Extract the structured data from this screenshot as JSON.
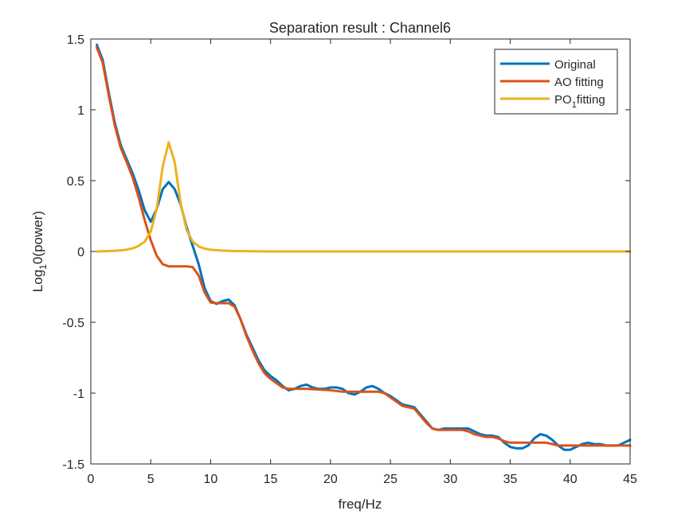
{
  "chart_data": {
    "type": "line",
    "title": "Separation result : Channel6",
    "xlabel": "freq/Hz",
    "ylabel": {
      "prefix": "Log",
      "subscript": "1",
      "suffix": "0(power)"
    },
    "xlim": [
      0,
      45
    ],
    "ylim": [
      -1.5,
      1.5
    ],
    "xticks": [
      0,
      5,
      10,
      15,
      20,
      25,
      30,
      35,
      40,
      45
    ],
    "xtick_labels": [
      "0",
      "5",
      "10",
      "15",
      "20",
      "25",
      "30",
      "35",
      "40",
      "45"
    ],
    "yticks": [
      -1.5,
      -1,
      -0.5,
      0,
      0.5,
      1,
      1.5
    ],
    "ytick_labels": [
      "-1.5",
      "-1",
      "-0.5",
      "0",
      "0.5",
      "1",
      "1.5"
    ],
    "grid": false,
    "legend_position": "top-right",
    "series": [
      {
        "name": "Original",
        "legend_label": {
          "prefix": "Original",
          "subscript": "",
          "suffix": ""
        },
        "color": "#0072BD",
        "points": [
          [
            0.5,
            1.46
          ],
          [
            1.0,
            1.35
          ],
          [
            1.5,
            1.12
          ],
          [
            2.0,
            0.91
          ],
          [
            2.5,
            0.75
          ],
          [
            3.0,
            0.65
          ],
          [
            3.5,
            0.55
          ],
          [
            4.0,
            0.43
          ],
          [
            4.5,
            0.29
          ],
          [
            5.0,
            0.21
          ],
          [
            5.5,
            0.3
          ],
          [
            6.0,
            0.44
          ],
          [
            6.5,
            0.49
          ],
          [
            7.0,
            0.44
          ],
          [
            7.5,
            0.33
          ],
          [
            8.0,
            0.17
          ],
          [
            8.5,
            0.04
          ],
          [
            9.0,
            -0.09
          ],
          [
            9.5,
            -0.26
          ],
          [
            10.0,
            -0.35
          ],
          [
            10.5,
            -0.37
          ],
          [
            11.0,
            -0.35
          ],
          [
            11.5,
            -0.34
          ],
          [
            12.0,
            -0.38
          ],
          [
            12.5,
            -0.48
          ],
          [
            13.0,
            -0.59
          ],
          [
            13.5,
            -0.68
          ],
          [
            14.0,
            -0.77
          ],
          [
            14.5,
            -0.84
          ],
          [
            15.0,
            -0.88
          ],
          [
            15.5,
            -0.91
          ],
          [
            16.0,
            -0.95
          ],
          [
            16.5,
            -0.98
          ],
          [
            17.0,
            -0.97
          ],
          [
            17.5,
            -0.95
          ],
          [
            18.0,
            -0.94
          ],
          [
            18.5,
            -0.96
          ],
          [
            19.0,
            -0.97
          ],
          [
            19.5,
            -0.97
          ],
          [
            20.0,
            -0.96
          ],
          [
            20.5,
            -0.96
          ],
          [
            21.0,
            -0.97
          ],
          [
            21.5,
            -1.0
          ],
          [
            22.0,
            -1.01
          ],
          [
            22.5,
            -0.99
          ],
          [
            23.0,
            -0.96
          ],
          [
            23.5,
            -0.95
          ],
          [
            24.0,
            -0.97
          ],
          [
            24.5,
            -1.0
          ],
          [
            25.0,
            -1.02
          ],
          [
            25.5,
            -1.05
          ],
          [
            26.0,
            -1.08
          ],
          [
            26.5,
            -1.09
          ],
          [
            27.0,
            -1.1
          ],
          [
            27.5,
            -1.15
          ],
          [
            28.0,
            -1.2
          ],
          [
            28.5,
            -1.25
          ],
          [
            29.0,
            -1.26
          ],
          [
            29.5,
            -1.25
          ],
          [
            30.0,
            -1.25
          ],
          [
            30.5,
            -1.25
          ],
          [
            31.0,
            -1.25
          ],
          [
            31.5,
            -1.25
          ],
          [
            32.0,
            -1.27
          ],
          [
            32.5,
            -1.29
          ],
          [
            33.0,
            -1.3
          ],
          [
            33.5,
            -1.3
          ],
          [
            34.0,
            -1.31
          ],
          [
            34.5,
            -1.35
          ],
          [
            35.0,
            -1.38
          ],
          [
            35.5,
            -1.39
          ],
          [
            36.0,
            -1.39
          ],
          [
            36.5,
            -1.37
          ],
          [
            37.0,
            -1.32
          ],
          [
            37.5,
            -1.29
          ],
          [
            38.0,
            -1.3
          ],
          [
            38.5,
            -1.33
          ],
          [
            39.0,
            -1.37
          ],
          [
            39.5,
            -1.4
          ],
          [
            40.0,
            -1.4
          ],
          [
            40.5,
            -1.38
          ],
          [
            41.0,
            -1.36
          ],
          [
            41.5,
            -1.35
          ],
          [
            42.0,
            -1.36
          ],
          [
            42.5,
            -1.36
          ],
          [
            43.0,
            -1.37
          ],
          [
            43.5,
            -1.37
          ],
          [
            44.0,
            -1.37
          ],
          [
            44.5,
            -1.35
          ],
          [
            45.0,
            -1.33
          ]
        ]
      },
      {
        "name": "AO fitting",
        "legend_label": {
          "prefix": "AO fitting",
          "subscript": "",
          "suffix": ""
        },
        "color": "#D95319",
        "points": [
          [
            0.5,
            1.44
          ],
          [
            1.0,
            1.33
          ],
          [
            1.5,
            1.1
          ],
          [
            2.0,
            0.89
          ],
          [
            2.5,
            0.73
          ],
          [
            3.0,
            0.63
          ],
          [
            3.5,
            0.52
          ],
          [
            4.0,
            0.38
          ],
          [
            4.5,
            0.22
          ],
          [
            5.0,
            0.08
          ],
          [
            5.5,
            -0.03
          ],
          [
            6.0,
            -0.09
          ],
          [
            6.5,
            -0.105
          ],
          [
            7.0,
            -0.105
          ],
          [
            7.5,
            -0.105
          ],
          [
            8.0,
            -0.105
          ],
          [
            8.5,
            -0.11
          ],
          [
            9.0,
            -0.17
          ],
          [
            9.5,
            -0.29
          ],
          [
            10.0,
            -0.36
          ],
          [
            10.5,
            -0.365
          ],
          [
            11.0,
            -0.365
          ],
          [
            11.5,
            -0.365
          ],
          [
            12.0,
            -0.39
          ],
          [
            12.5,
            -0.48
          ],
          [
            13.0,
            -0.6
          ],
          [
            13.5,
            -0.7
          ],
          [
            14.0,
            -0.79
          ],
          [
            14.5,
            -0.86
          ],
          [
            15.0,
            -0.9
          ],
          [
            15.5,
            -0.93
          ],
          [
            16.0,
            -0.96
          ],
          [
            16.5,
            -0.97
          ],
          [
            17.0,
            -0.97
          ],
          [
            18.0,
            -0.97
          ],
          [
            19.0,
            -0.975
          ],
          [
            20.0,
            -0.98
          ],
          [
            21.0,
            -0.99
          ],
          [
            22.0,
            -0.99
          ],
          [
            23.0,
            -0.99
          ],
          [
            24.0,
            -0.99
          ],
          [
            24.5,
            -1.0
          ],
          [
            25.0,
            -1.03
          ],
          [
            25.5,
            -1.06
          ],
          [
            26.0,
            -1.09
          ],
          [
            26.5,
            -1.1
          ],
          [
            27.0,
            -1.11
          ],
          [
            27.5,
            -1.16
          ],
          [
            28.0,
            -1.21
          ],
          [
            28.5,
            -1.25
          ],
          [
            29.0,
            -1.26
          ],
          [
            30.0,
            -1.26
          ],
          [
            31.0,
            -1.26
          ],
          [
            31.5,
            -1.27
          ],
          [
            32.0,
            -1.29
          ],
          [
            32.5,
            -1.3
          ],
          [
            33.0,
            -1.31
          ],
          [
            33.5,
            -1.31
          ],
          [
            34.0,
            -1.32
          ],
          [
            34.5,
            -1.34
          ],
          [
            35.0,
            -1.35
          ],
          [
            36.0,
            -1.35
          ],
          [
            37.0,
            -1.35
          ],
          [
            38.0,
            -1.35
          ],
          [
            38.5,
            -1.36
          ],
          [
            39.0,
            -1.37
          ],
          [
            40.0,
            -1.37
          ],
          [
            41.0,
            -1.37
          ],
          [
            42.0,
            -1.37
          ],
          [
            43.0,
            -1.37
          ],
          [
            44.0,
            -1.37
          ],
          [
            45.0,
            -1.37
          ]
        ]
      },
      {
        "name": "PO1fitting",
        "legend_label": {
          "prefix": "PO",
          "subscript": "1",
          "suffix": "fitting"
        },
        "color": "#EDB120",
        "points": [
          [
            0.5,
            0.0
          ],
          [
            1.0,
            0.002
          ],
          [
            1.5,
            0.003
          ],
          [
            2.0,
            0.005
          ],
          [
            2.5,
            0.008
          ],
          [
            3.0,
            0.013
          ],
          [
            3.5,
            0.022
          ],
          [
            4.0,
            0.04
          ],
          [
            4.5,
            0.07
          ],
          [
            5.0,
            0.14
          ],
          [
            5.5,
            0.3
          ],
          [
            6.0,
            0.6
          ],
          [
            6.5,
            0.77
          ],
          [
            7.0,
            0.63
          ],
          [
            7.5,
            0.34
          ],
          [
            8.0,
            0.15
          ],
          [
            8.5,
            0.07
          ],
          [
            9.0,
            0.035
          ],
          [
            9.5,
            0.02
          ],
          [
            10.0,
            0.012
          ],
          [
            11.0,
            0.006
          ],
          [
            12.0,
            0.003
          ],
          [
            13.0,
            0.002
          ],
          [
            14.0,
            0.001
          ],
          [
            15.0,
            0.0
          ],
          [
            20.0,
            0.0
          ],
          [
            25.0,
            0.0
          ],
          [
            30.0,
            0.0
          ],
          [
            35.0,
            0.0
          ],
          [
            40.0,
            0.0
          ],
          [
            45.0,
            0.0
          ]
        ]
      }
    ]
  }
}
